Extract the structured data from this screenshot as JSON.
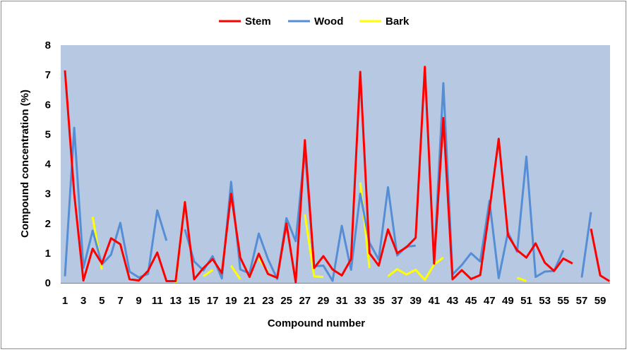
{
  "chart_data": {
    "type": "line",
    "xlabel": "Compound  number",
    "ylabel": "Compound  concentration  (%)",
    "x": [
      1,
      2,
      3,
      4,
      5,
      6,
      7,
      8,
      9,
      10,
      11,
      12,
      13,
      14,
      15,
      16,
      17,
      18,
      19,
      20,
      21,
      22,
      23,
      24,
      25,
      26,
      27,
      28,
      29,
      30,
      31,
      32,
      33,
      34,
      35,
      36,
      37,
      38,
      39,
      40,
      41,
      42,
      43,
      44,
      45,
      46,
      47,
      48,
      49,
      50,
      51,
      52,
      53,
      54,
      55,
      56,
      57,
      58,
      59,
      60
    ],
    "x_tick_labels": [
      "1",
      "3",
      "5",
      "7",
      "9",
      "11",
      "13",
      "15",
      "17",
      "19",
      "21",
      "23",
      "25",
      "27",
      "29",
      "31",
      "33",
      "35",
      "37",
      "39",
      "41",
      "43",
      "45",
      "47",
      "49",
      "51",
      "53",
      "55",
      "57",
      "59"
    ],
    "y_ticks": [
      0,
      1,
      2,
      3,
      4,
      5,
      6,
      7,
      8
    ],
    "ylim": [
      0,
      8
    ],
    "legend_position": "top-center",
    "plot_background": "#b7c9e2",
    "series": [
      {
        "name": "Stem",
        "color": "#ff0000",
        "values": [
          7.15,
          3.0,
          0.08,
          1.15,
          0.65,
          1.5,
          1.3,
          0.12,
          0.08,
          0.4,
          1.02,
          0.06,
          0.06,
          2.72,
          0.12,
          0.5,
          0.8,
          0.33,
          3.0,
          0.85,
          0.2,
          0.98,
          0.3,
          0.17,
          2.0,
          0.02,
          4.8,
          0.5,
          0.9,
          0.45,
          0.25,
          0.8,
          7.1,
          1.0,
          0.58,
          1.8,
          1.0,
          1.2,
          1.52,
          7.27,
          0.65,
          5.55,
          0.12,
          0.43,
          0.13,
          0.26,
          2.45,
          4.85,
          1.6,
          1.1,
          0.85,
          1.33,
          0.68,
          0.4,
          0.82,
          0.65,
          null,
          1.82,
          0.25,
          0.06
        ]
      },
      {
        "name": "Wood",
        "color": "#558ed5",
        "values": [
          0.22,
          5.22,
          0.5,
          1.76,
          0.62,
          0.95,
          2.02,
          0.38,
          0.18,
          0.3,
          2.44,
          1.42,
          null,
          1.8,
          0.72,
          0.42,
          0.9,
          0.15,
          3.4,
          0.45,
          0.32,
          1.66,
          0.8,
          0.13,
          2.18,
          1.4,
          4.5,
          0.56,
          0.58,
          0.07,
          1.92,
          0.44,
          3.0,
          1.35,
          0.78,
          3.22,
          0.92,
          1.22,
          1.25,
          null,
          0.7,
          6.72,
          0.28,
          0.6,
          1.0,
          0.72,
          2.76,
          0.16,
          1.7,
          1.05,
          4.25,
          0.2,
          0.38,
          0.4,
          1.1,
          null,
          0.18,
          2.38,
          null,
          null
        ]
      },
      {
        "name": "Bark",
        "color": "#ffff00",
        "values": [
          null,
          null,
          null,
          2.22,
          0.45,
          null,
          null,
          null,
          null,
          null,
          null,
          null,
          0.0,
          2.75,
          null,
          0.22,
          0.44,
          null,
          0.58,
          0.12,
          null,
          0.82,
          0.38,
          null,
          null,
          null,
          2.3,
          0.22,
          0.2,
          null,
          null,
          null,
          3.38,
          0.5,
          null,
          0.22,
          0.46,
          0.28,
          0.44,
          0.1,
          0.62,
          0.85,
          null,
          null,
          null,
          null,
          null,
          null,
          null,
          0.17,
          0.06,
          null,
          null,
          null,
          null,
          null,
          null,
          null,
          null,
          null
        ]
      }
    ]
  }
}
